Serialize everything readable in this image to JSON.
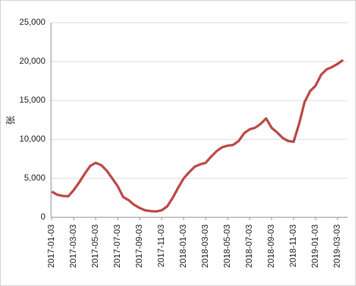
{
  "chart_data": {
    "type": "line",
    "ylabel": "张",
    "categories": [
      "2017-01-03",
      null,
      null,
      null,
      "2017-03-03",
      null,
      null,
      null,
      "2017-05-03",
      null,
      null,
      null,
      "2017-07-03",
      null,
      null,
      null,
      "2017-09-03",
      null,
      null,
      null,
      "2017-11-03",
      null,
      null,
      null,
      "2018-01-03",
      null,
      null,
      null,
      "2018-03-03",
      null,
      null,
      null,
      "2018-05-03",
      null,
      null,
      null,
      "2018-07-03",
      null,
      null,
      null,
      "2018-09-03",
      null,
      null,
      null,
      "2018-11-03",
      null,
      null,
      null,
      "2019-01-03",
      null,
      null,
      null,
      "2019-03-03",
      null
    ],
    "series": [
      {
        "name": "张",
        "color": "#be4b48",
        "values": [
          3300,
          2900,
          2750,
          2700,
          3500,
          4500,
          5600,
          6600,
          7000,
          6700,
          6000,
          5000,
          4000,
          2600,
          2200,
          1600,
          1200,
          900,
          800,
          750,
          900,
          1400,
          2500,
          3800,
          5000,
          5800,
          6500,
          6800,
          7000,
          7800,
          8500,
          9000,
          9200,
          9300,
          9800,
          10800,
          11300,
          11500,
          12000,
          12700,
          11500,
          10900,
          10200,
          9800,
          9700,
          12000,
          14800,
          16200,
          16900,
          18300,
          19000,
          19300,
          19700,
          20200
        ]
      }
    ],
    "ylim": [
      0,
      25000
    ],
    "yticks": [
      0,
      {
        "value": 5000,
        "label": "5,000"
      },
      {
        "value": 10000,
        "label": "10,000"
      },
      {
        "value": 15000,
        "label": "15,000"
      },
      {
        "value": 20000,
        "label": "20,000"
      },
      {
        "value": 25000,
        "label": "25,000"
      }
    ],
    "grid": true
  }
}
